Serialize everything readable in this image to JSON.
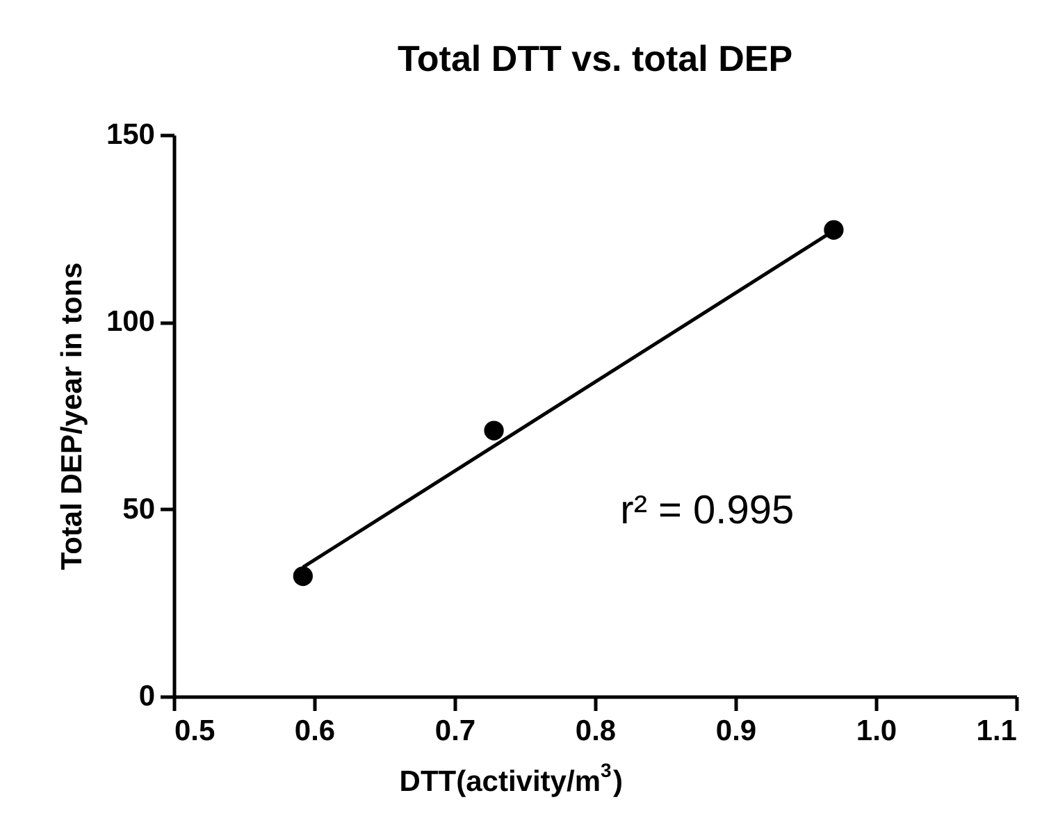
{
  "chart_data": {
    "type": "scatter",
    "title": "Total DTT vs. total DEP",
    "xlabel": "DTT(activity/m$^{3}$)",
    "ylabel": "Total DEP/year in tons",
    "xlim": [
      0.5,
      1.1
    ],
    "xticks": [
      0.5,
      0.6,
      0.7,
      0.8,
      0.9,
      {
        "value": 1.0,
        "label": "1.0"
      },
      1.1
    ],
    "ylim": [
      0,
      150
    ],
    "yticks": [
      0,
      50,
      100,
      150
    ],
    "grid": false,
    "series": [
      {
        "color": "#000000",
        "marker": "circle",
        "x": [
          0.592,
          0.728,
          0.97
        ],
        "values": [
          32.1,
          71.0,
          124.6
        ]
      },
      {
        "type": "line",
        "color": "#000000",
        "line_style": "solid",
        "marker": "none",
        "x": [
          0.592,
          0.97
        ],
        "values": [
          34.5,
          124.4
        ]
      }
    ],
    "annotations": [
      "r² = 0.995"
    ]
  }
}
